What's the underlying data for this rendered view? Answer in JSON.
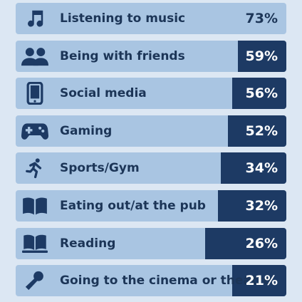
{
  "chart_data": {
    "type": "bar",
    "orientation": "horizontal",
    "title": "",
    "xlabel": "",
    "ylabel": "",
    "categories": [
      "Listening to music",
      "Being with friends",
      "Social media",
      "Gaming",
      "Sports/Gym",
      "Eating out/at the pub",
      "Reading",
      "Going to the cinema or theatre"
    ],
    "values": [
      73,
      59,
      56,
      52,
      34,
      32,
      26,
      21
    ],
    "value_labels": [
      "73%",
      "59%",
      "56%",
      "52%",
      "34%",
      "32%",
      "26%",
      "21%"
    ],
    "icons": [
      "music-note-icon",
      "people-icon",
      "tablet-icon",
      "gamepad-icon",
      "running-person-icon",
      "open-book-icon",
      "book-reading-icon",
      "microphone-icon"
    ],
    "xlim": [
      0,
      100
    ],
    "colors": {
      "background": "#dce7f3",
      "track": "#a9c5e2",
      "bar": "#1d3a64",
      "label_text": "#1c3557",
      "value_text": "#ffffff"
    }
  }
}
